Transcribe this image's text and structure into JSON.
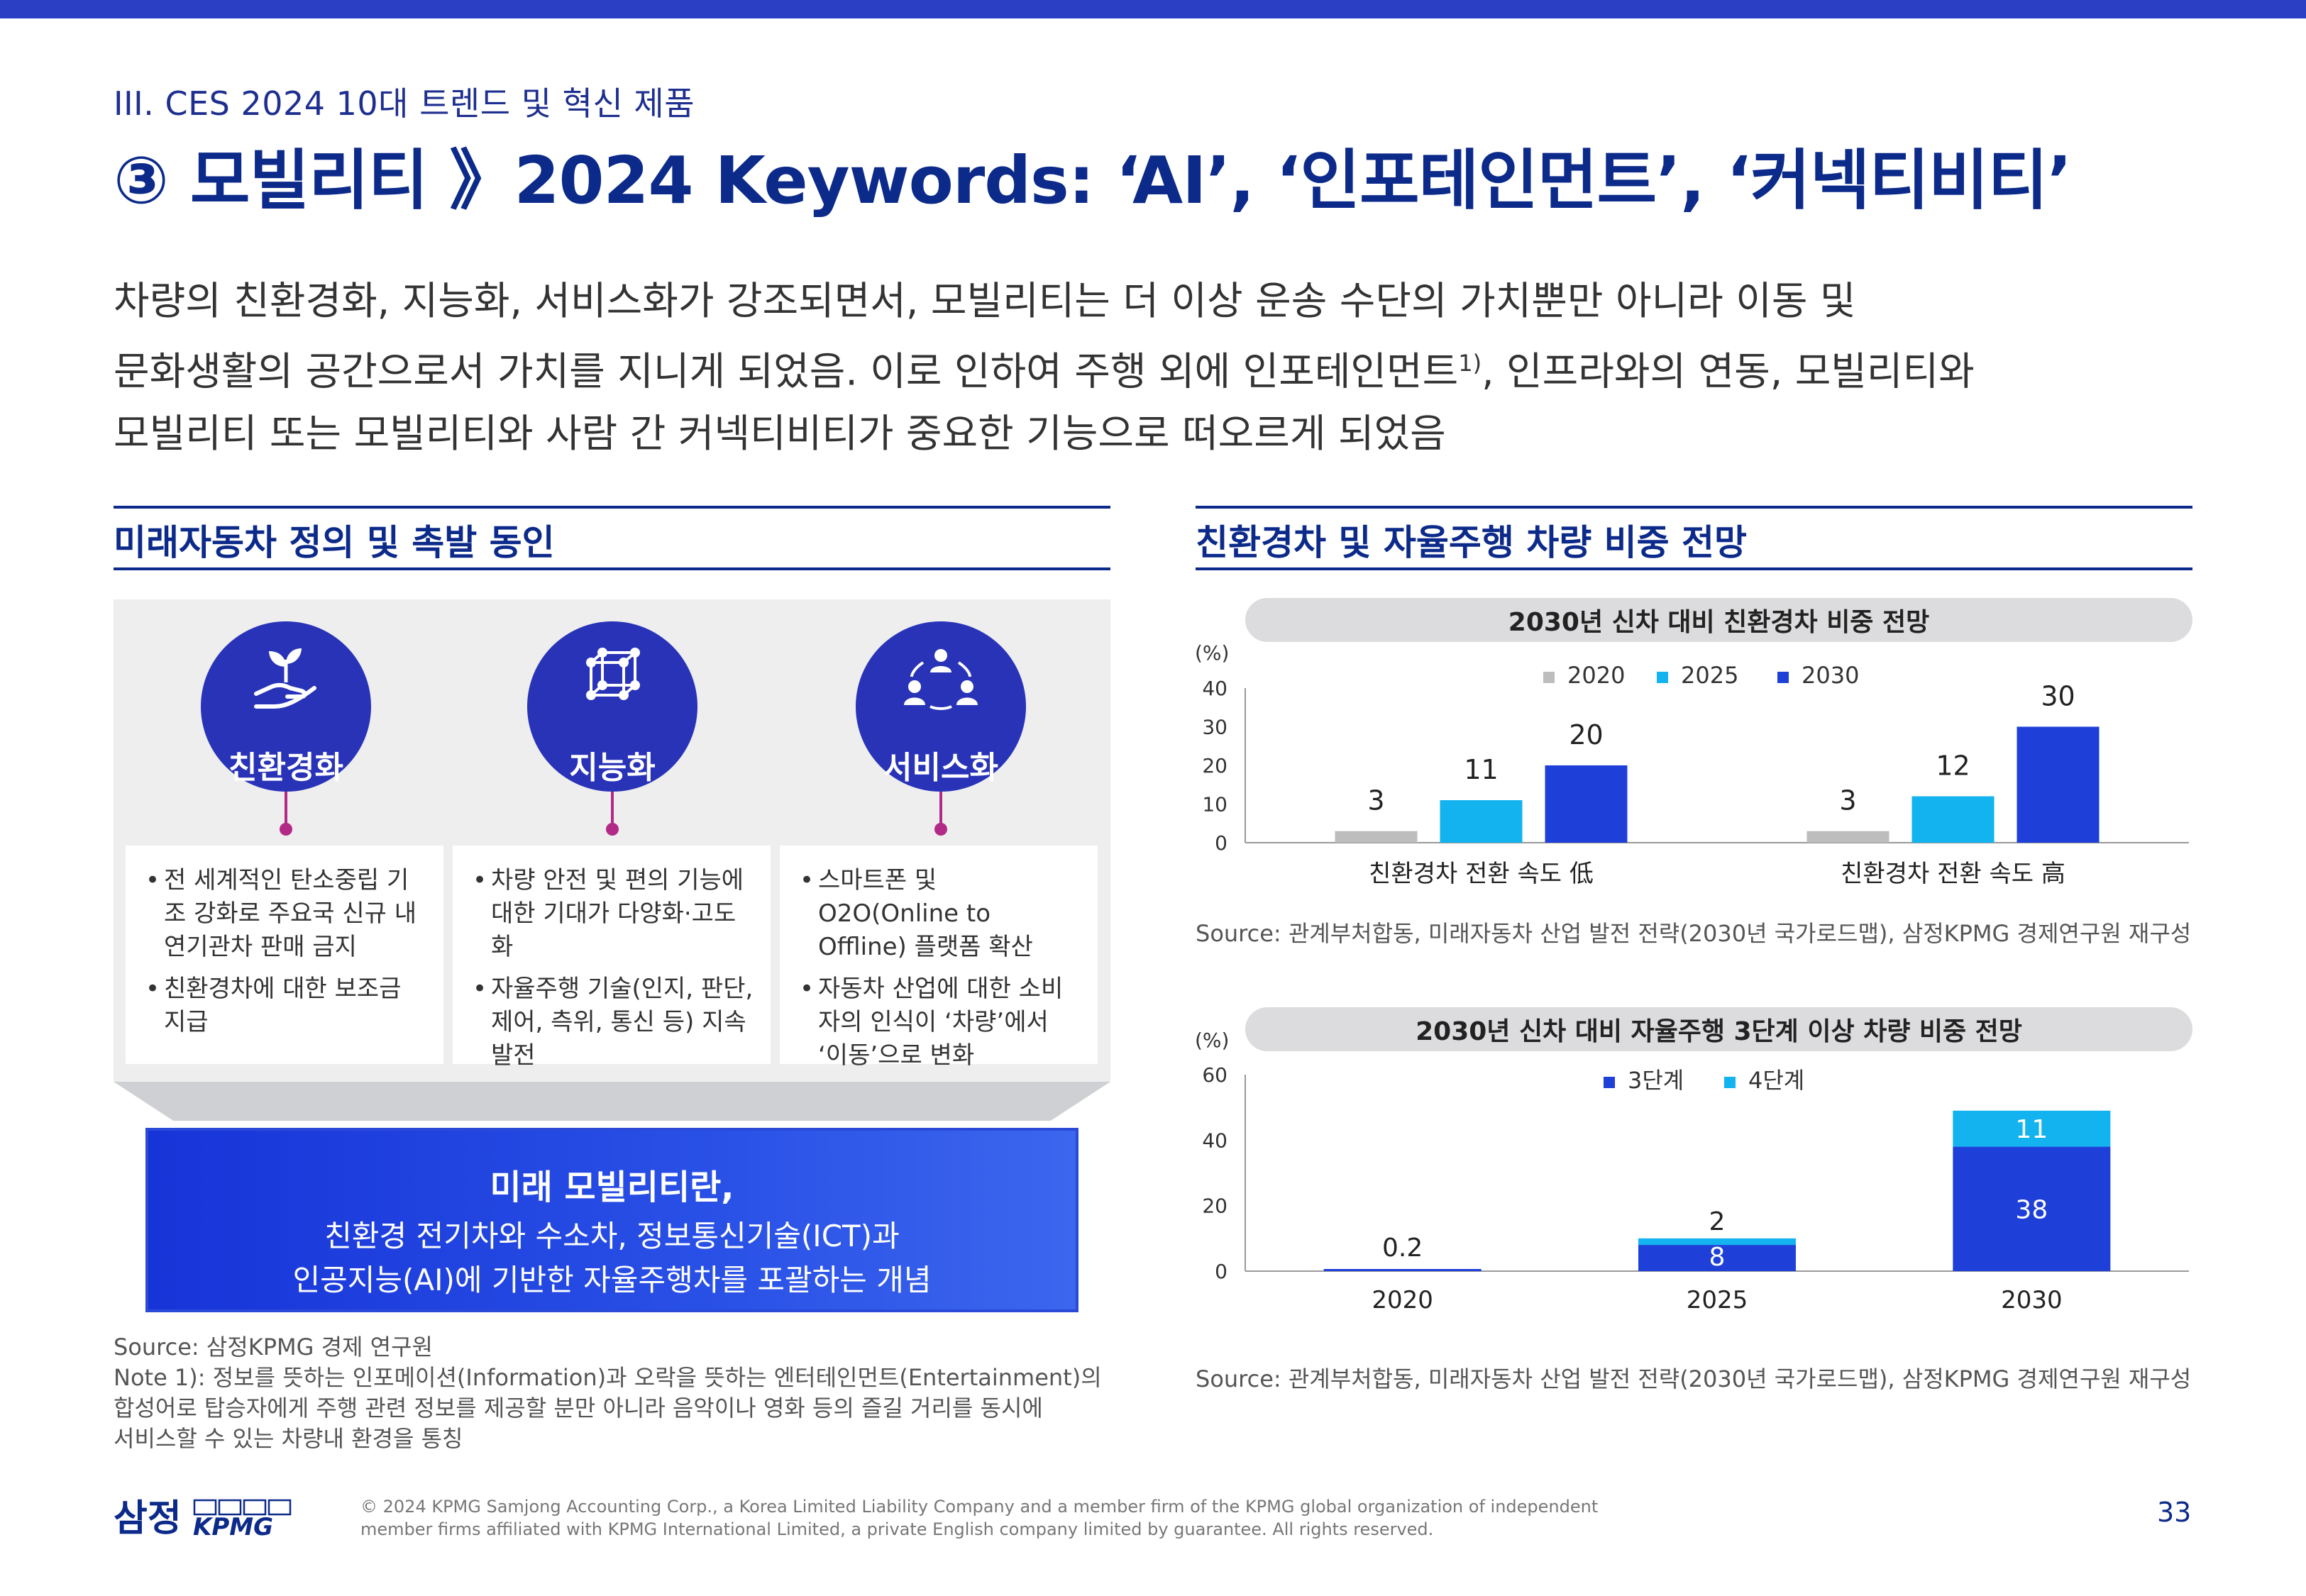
{
  "header": {
    "section_label": "III. CES 2024 10대 트렌드 및 혁신 제품",
    "title": "③ 모빌리티 》2024 Keywords: ‘AI’, ‘인포테인먼트’, ‘커넥티비티’"
  },
  "intro": {
    "line1": "차량의 친환경화, 지능화, 서비스화가 강조되면서, 모빌리티는 더 이상 운송 수단의 가치뿐만 아니라 이동 및",
    "line2": "문화생활의 공간으로서 가치를 지니게 되었음. 이로 인하여 주행 외에 인포테인먼트",
    "line2_sup": "1)",
    "line2_rest": ", 인프라와의 연동, 모빌리티와",
    "line3": "모빌리티 또는 모빌리티와 사람 간 커넥티비티가 중요한 기능으로 떠오르게 되었음"
  },
  "left": {
    "heading": "미래자동차 정의 및 촉발 동인",
    "drivers": [
      {
        "label": "친환경화",
        "icon": "plant-in-hand-icon",
        "bullets": [
          "전 세계적인 탄소중립 기조 강화로 주요국 신규 내연기관차 판매 금지",
          "친환경차에 대한 보조금 지급"
        ]
      },
      {
        "label": "지능화",
        "icon": "network-cube-icon",
        "bullets": [
          "차량 안전 및 편의 기능에 대한 기대가 다양화·고도화",
          "자율주행 기술(인지, 판단, 제어, 측위, 통신 등) 지속 발전"
        ]
      },
      {
        "label": "서비스화",
        "icon": "people-cycle-icon",
        "bullets": [
          "스마트폰 및 O2O(Online to Offline) 플랫폼 확산",
          "자동차 산업에 대한 소비자의 인식이 ‘차량’에서 ‘이동’으로 변화"
        ]
      }
    ],
    "definition_title": "미래 모빌리티란,",
    "definition_line1": "친환경 전기차와 수소차, 정보통신기술(ICT)과",
    "definition_line2": "인공지능(AI)에 기반한 자율주행차를 포괄하는 개념",
    "source": "Source: 삼정KPMG 경제 연구원",
    "note_line1": "Note 1): 정보를 뜻하는 인포메이션(Information)과 오락을 뜻하는 엔터테인먼트(Entertainment)의",
    "note_line2": "합성어로 탑승자에게 주행 관련 정보를 제공할 분만 아니라 음악이나 영화 등의 즐길 거리를 동시에",
    "note_line3": "서비스할 수 있는 차량내 환경을 통칭"
  },
  "right": {
    "heading": "친환경차 및 자율주행 차량 비중 전망",
    "source1": "Source: 관계부처합동, 미래자동차 산업 발전 전략(2030년 국가로드맵), 삼정KPMG 경제연구원 재구성",
    "source2": "Source: 관계부처합동, 미래자동차 산업 발전 전략(2030년 국가로드맵), 삼정KPMG 경제연구원 재구성"
  },
  "chart_data": [
    {
      "type": "bar",
      "title": "2030년 신차 대비 친환경차 비중 전망",
      "ylabel": "(%)",
      "ylim": [
        0,
        40
      ],
      "yticks": [
        0,
        10,
        20,
        30,
        40
      ],
      "legend_position": "top-center",
      "categories": [
        "친환경차 전환 속도 低",
        "친환경차 전환 속도 高"
      ],
      "series": [
        {
          "name": "2020",
          "color": "#bdbdbd",
          "values": [
            3,
            3
          ]
        },
        {
          "name": "2025",
          "color": "#12b3ef",
          "values": [
            11,
            12
          ]
        },
        {
          "name": "2030",
          "color": "#1e40d8",
          "values": [
            20,
            30
          ]
        }
      ]
    },
    {
      "type": "bar",
      "stacked": true,
      "title": "2030년 신차 대비 자율주행 3단계 이상 차량 비중 전망",
      "ylabel": "(%)",
      "ylim": [
        0,
        60
      ],
      "yticks": [
        0,
        20,
        40,
        60
      ],
      "legend_position": "top-center",
      "categories": [
        "2020",
        "2025",
        "2030"
      ],
      "series": [
        {
          "name": "3단계",
          "color": "#1e40d8",
          "values": [
            0.2,
            8,
            38
          ]
        },
        {
          "name": "4단계",
          "color": "#12b3ef",
          "values": [
            0,
            2,
            11
          ]
        }
      ],
      "data_labels": [
        {
          "category": "2020",
          "text": "0.2"
        },
        {
          "category": "2025",
          "series": "3단계",
          "text": "8"
        },
        {
          "category": "2025",
          "series": "4단계",
          "text": "2"
        },
        {
          "category": "2030",
          "series": "3단계",
          "text": "38"
        },
        {
          "category": "2030",
          "series": "4단계",
          "text": "11"
        }
      ]
    }
  ],
  "footer": {
    "logo_kr": "삼정",
    "logo_en": "KPMG",
    "copyright_line1": "© 2024 KPMG Samjong Accounting Corp., a Korea Limited Liability Company and a member firm of the KPMG global organization of independent",
    "copyright_line2": "member firms affiliated with KPMG International Limited, a private English company limited by guarantee. All rights reserved.",
    "page_number": "33"
  }
}
